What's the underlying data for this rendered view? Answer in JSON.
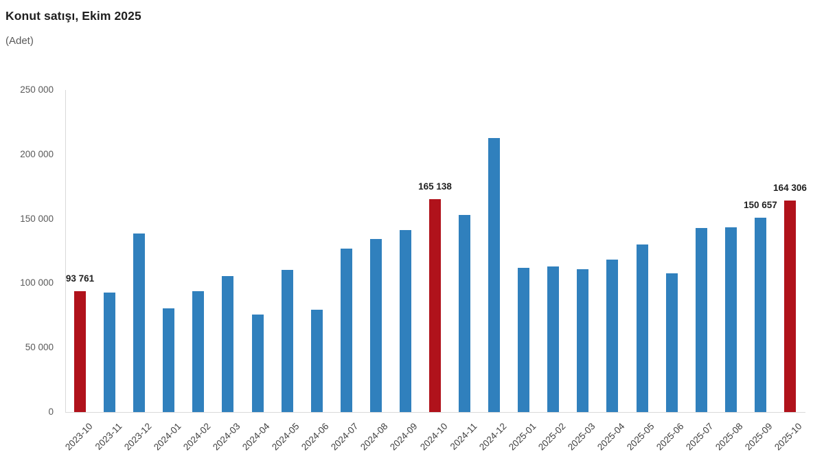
{
  "header": {
    "title": "Konut satışı, Ekim 2025",
    "subtitle": "(Adet)"
  },
  "chart_data": {
    "type": "bar",
    "title": "Konut satışı, Ekim 2025",
    "unit_label": "(Adet)",
    "xlabel": "",
    "ylabel": "",
    "grid": false,
    "legend": false,
    "ylim": [
      0,
      250000
    ],
    "yticks": [
      0,
      50000,
      100000,
      150000,
      200000,
      250000
    ],
    "ytick_labels": [
      "0",
      "50 000",
      "100 000",
      "150 000",
      "200 000",
      "250 000"
    ],
    "categories": [
      "2023-10",
      "2023-11",
      "2023-12",
      "2024-01",
      "2024-02",
      "2024-03",
      "2024-04",
      "2024-05",
      "2024-06",
      "2024-07",
      "2024-08",
      "2024-09",
      "2024-10",
      "2024-11",
      "2024-12",
      "2025-01",
      "2025-02",
      "2025-03",
      "2025-04",
      "2025-05",
      "2025-06",
      "2025-07",
      "2025-08",
      "2025-09",
      "2025-10"
    ],
    "values": [
      93761,
      93000,
      138600,
      80300,
      93900,
      105500,
      75600,
      110600,
      79300,
      127100,
      134200,
      141000,
      165138,
      153000,
      212600,
      112200,
      112800,
      110800,
      118400,
      130000,
      107700,
      142900,
      143300,
      150657,
      164306
    ],
    "highlighted_categories": [
      "2023-10",
      "2024-10",
      "2025-10"
    ],
    "annotations": [
      {
        "category": "2023-10",
        "label": "93 761"
      },
      {
        "category": "2024-10",
        "label": "165 138"
      },
      {
        "category": "2025-09",
        "label": "150 657"
      },
      {
        "category": "2025-10",
        "label": "164 306"
      }
    ],
    "colors": {
      "bar": "#3080bd",
      "highlight": "#b0121b",
      "axis_line": "#d9d9d9",
      "tick_text": "#595959",
      "xlabel_text": "#404040",
      "data_label_text": "#1f1f1f"
    }
  }
}
